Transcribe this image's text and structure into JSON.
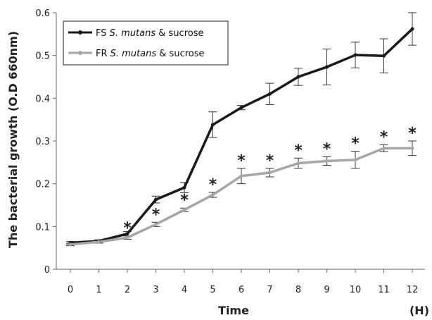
{
  "chart_data": {
    "type": "line",
    "title": "",
    "xlabel": "Time",
    "x_unit_label": "(H)",
    "ylabel": "The bacterial growth (O.D 660nm)",
    "x": [
      0,
      1,
      2,
      3,
      4,
      5,
      6,
      7,
      8,
      9,
      10,
      11,
      12
    ],
    "x_tick_labels": [
      "0",
      "1",
      "2",
      "3",
      "4",
      "5",
      "6",
      "7",
      "8",
      "9",
      "10",
      "11",
      "12"
    ],
    "ylim": [
      0,
      0.6
    ],
    "y_ticks": [
      0,
      0.1,
      0.2,
      0.3,
      0.4,
      0.5,
      0.6
    ],
    "y_tick_labels": [
      "0",
      "0.1",
      "0.2",
      "0.3",
      "0.4",
      "0.5",
      "0.6"
    ],
    "grid": false,
    "legend_position": "top-left",
    "series": [
      {
        "name": "FS S. mutans & sucrose",
        "legend_prefix": "FS ",
        "legend_italic": "S. mutans",
        "legend_suffix": " & sucrose",
        "color": "#1a1a1a",
        "values": [
          0.062,
          0.066,
          0.083,
          0.163,
          0.191,
          0.338,
          0.378,
          0.41,
          0.45,
          0.473,
          0.501,
          0.499,
          0.562
        ],
        "errors": [
          0.003,
          0.003,
          0.005,
          0.008,
          0.012,
          0.03,
          0.005,
          0.025,
          0.02,
          0.042,
          0.03,
          0.04,
          0.038
        ]
      },
      {
        "name": "FR S. mutans & sucrose",
        "legend_prefix": "FR ",
        "legend_italic": "S. mutans",
        "legend_suffix": " & sucrose",
        "color": "#a6a6a6",
        "values": [
          0.058,
          0.064,
          0.074,
          0.105,
          0.139,
          0.174,
          0.218,
          0.226,
          0.248,
          0.253,
          0.256,
          0.283,
          0.283
        ],
        "errors": [
          0.003,
          0.003,
          0.004,
          0.005,
          0.004,
          0.006,
          0.018,
          0.01,
          0.012,
          0.01,
          0.02,
          0.008,
          0.017
        ]
      }
    ],
    "significance_marker": "*",
    "significance_at_x": [
      2,
      3,
      4,
      5,
      6,
      7,
      8,
      9,
      10,
      11,
      12
    ]
  }
}
